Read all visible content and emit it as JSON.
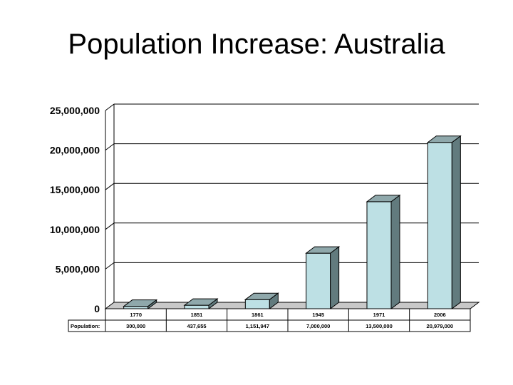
{
  "title": "Population Increase: Australia",
  "chart_data": {
    "type": "bar",
    "title": "Population Increase: Australia",
    "categories": [
      "1770",
      "1851",
      "1861",
      "1945",
      "1971",
      "2006"
    ],
    "values": [
      300000,
      437655,
      1151947,
      7000000,
      13500000,
      20979000
    ],
    "value_labels": [
      "300,000",
      "437,655",
      "1,151,947",
      "7,000,000",
      "13,500,000",
      "20,979,000"
    ],
    "table_row_label": "Population:",
    "ylim": [
      0,
      25000000
    ],
    "yticks": [
      0,
      5000000,
      10000000,
      15000000,
      20000000,
      25000000
    ],
    "ytick_labels": [
      "0",
      "5,000,000",
      "10,000,000",
      "15,000,000",
      "20,000,000",
      "25,000,000"
    ],
    "grid": true,
    "bar_style": "3d",
    "colors": {
      "bar_front": "#bde0e4",
      "bar_side": "#627b7e",
      "bar_top": "#8fa8ab",
      "floor": "#c8c8c8"
    }
  }
}
